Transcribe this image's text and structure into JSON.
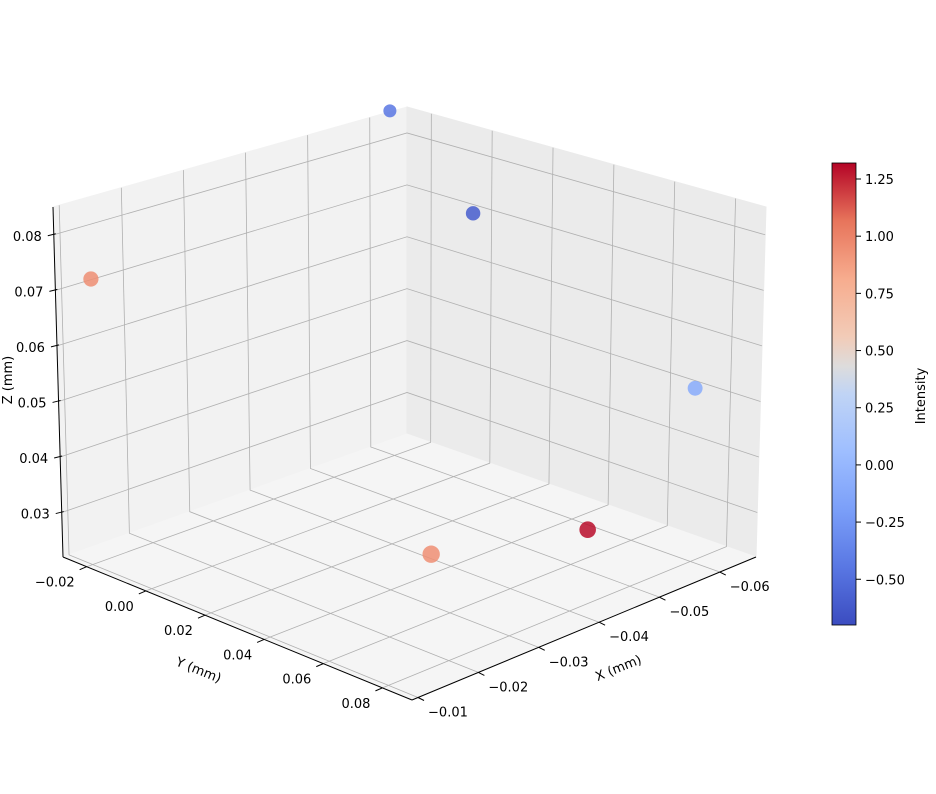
{
  "chart_data": {
    "type": "scatter",
    "projection": "3d",
    "title": "",
    "xlabel": "X (mm)",
    "ylabel": "Y (mm)",
    "zlabel": "Z (mm)",
    "x_ticks": [
      "−0.06",
      "−0.05",
      "−0.04",
      "−0.03",
      "−0.02",
      "−0.01"
    ],
    "y_ticks": [
      "−0.02",
      "0.00",
      "0.02",
      "0.04",
      "0.06",
      "0.08"
    ],
    "z_ticks": [
      "0.03",
      "0.04",
      "0.05",
      "0.06",
      "0.07",
      "0.08"
    ],
    "xlim": [
      -0.066,
      -0.009
    ],
    "ylim": [
      -0.028,
      0.09
    ],
    "zlim": [
      0.022,
      0.085
    ],
    "grid": true,
    "colormap": "coolwarm",
    "points": [
      {
        "x": -0.012,
        "y": -0.022,
        "z": 0.072,
        "intensity": 0.95
      },
      {
        "x": -0.056,
        "y": -0.01,
        "z": 0.085,
        "intensity": -0.45
      },
      {
        "x": -0.05,
        "y": 0.03,
        "z": 0.078,
        "intensity": -0.6
      },
      {
        "x": -0.064,
        "y": 0.075,
        "z": 0.05,
        "intensity": -0.1
      },
      {
        "x": -0.02,
        "y": 0.075,
        "z": 0.04,
        "intensity": 0.95
      },
      {
        "x": -0.04,
        "y": 0.087,
        "z": 0.038,
        "intensity": 1.3
      }
    ],
    "colorbar": {
      "label": "Intensity",
      "ticks": [
        "−0.50",
        "−0.25",
        "0.00",
        "0.25",
        "0.50",
        "0.75",
        "1.00",
        "1.25"
      ],
      "tick_values": [
        -0.5,
        -0.25,
        0,
        0.25,
        0.5,
        0.75,
        1.0,
        1.25
      ],
      "range": [
        -0.7,
        1.32
      ]
    }
  }
}
